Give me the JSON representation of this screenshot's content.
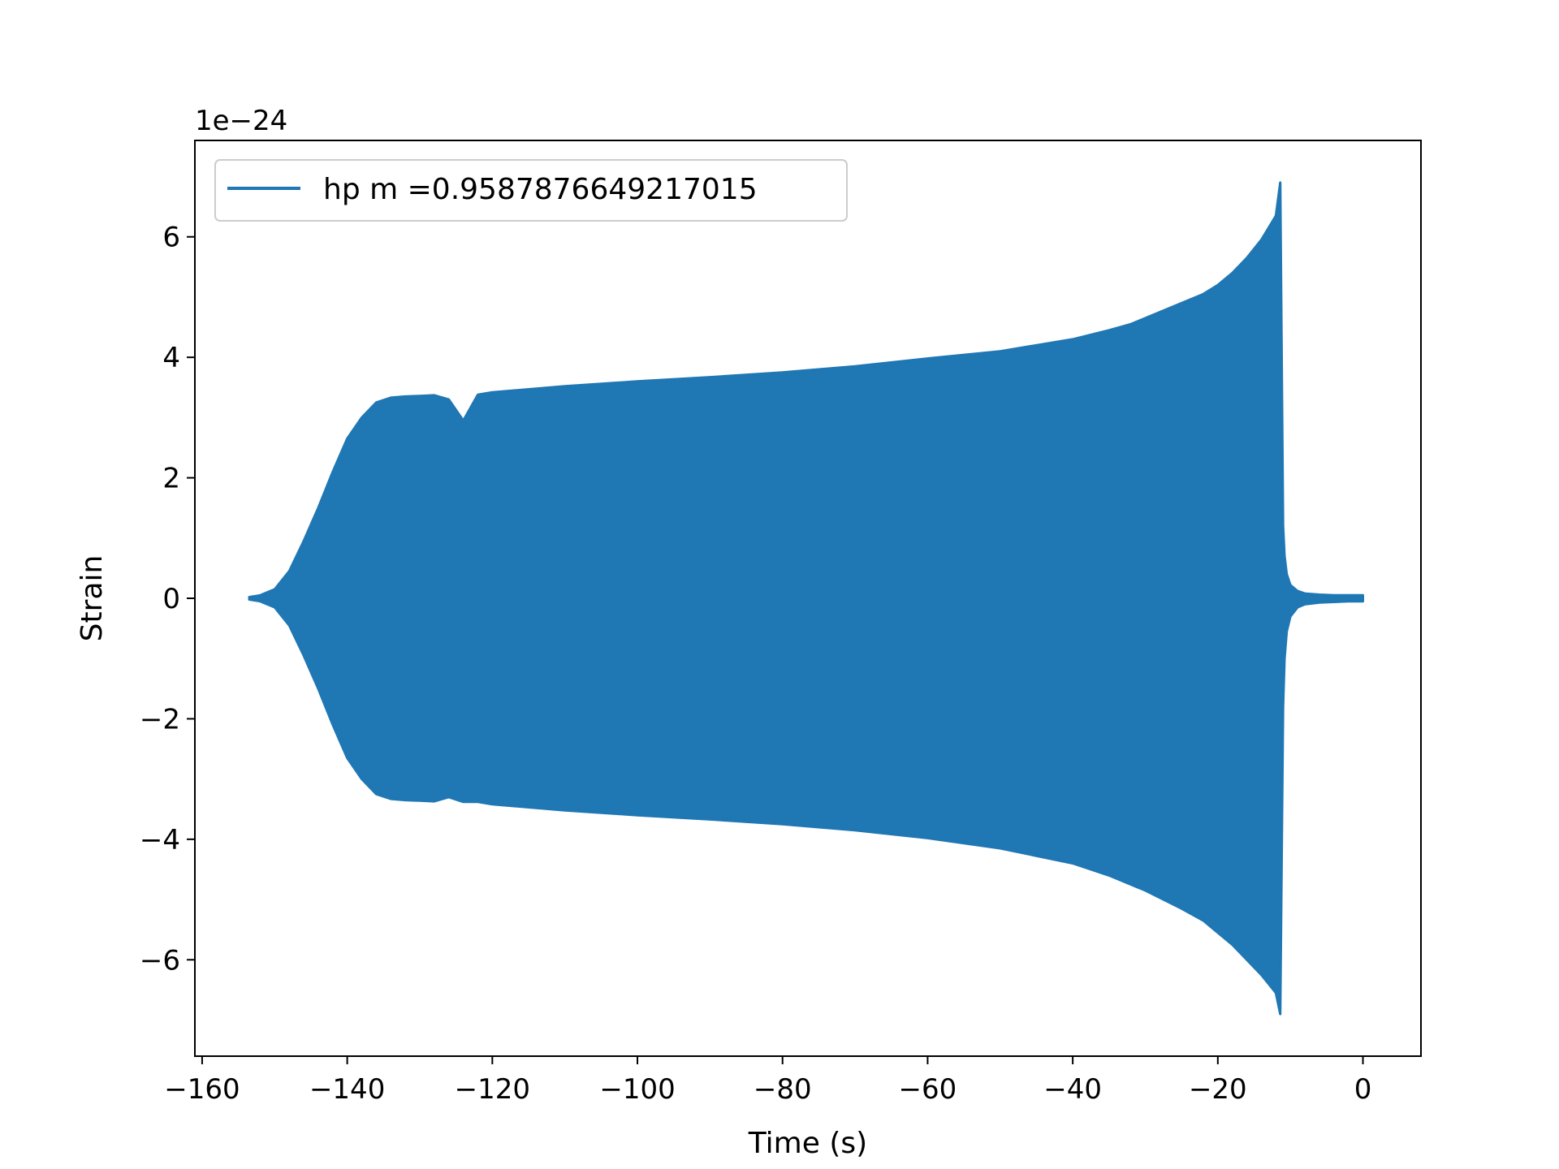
{
  "chart_data": {
    "type": "line",
    "xlabel": "Time (s)",
    "ylabel": "Strain",
    "offset_text": "1e−24",
    "xlim": [
      -161,
      8
    ],
    "ylim": [
      -7.6,
      7.6
    ],
    "x_ticks": [
      -160,
      -140,
      -120,
      -100,
      -80,
      -60,
      -40,
      -20,
      0
    ],
    "x_tick_labels": [
      "−160",
      "−140",
      "−120",
      "−100",
      "−80",
      "−60",
      "−40",
      "−20",
      "0"
    ],
    "y_ticks": [
      -6,
      -4,
      -2,
      0,
      2,
      4,
      6
    ],
    "y_tick_labels": [
      "−6",
      "−4",
      "−2",
      "0",
      "2",
      "4",
      "6"
    ],
    "grid": false,
    "legend_position": "upper-left",
    "series": [
      {
        "name": "hp m =0.9587876649217015",
        "color": "#1f77b4",
        "envelope": {
          "x": [
            -153.5,
            -152,
            -150,
            -148,
            -146,
            -144,
            -142,
            -140,
            -138,
            -136,
            -134,
            -132,
            -130,
            -128,
            -126,
            -124,
            -122,
            -120,
            -110,
            -100,
            -90,
            -80,
            -70,
            -60,
            -50,
            -40,
            -35,
            -32,
            -30,
            -25,
            -22,
            -20,
            -18,
            -16,
            -14,
            -13,
            -12,
            -11.4,
            -11.0,
            -10.8,
            -10.5,
            -10,
            -9,
            -8,
            -6,
            -4,
            -2,
            0
          ],
          "upper": [
            0.02,
            0.05,
            0.15,
            0.45,
            0.95,
            1.5,
            2.1,
            2.65,
            3.0,
            3.25,
            3.33,
            3.35,
            3.36,
            3.37,
            3.3,
            2.95,
            3.38,
            3.42,
            3.52,
            3.6,
            3.67,
            3.75,
            3.85,
            3.98,
            4.1,
            4.3,
            4.45,
            4.55,
            4.65,
            4.9,
            5.05,
            5.2,
            5.4,
            5.65,
            5.95,
            6.15,
            6.35,
            6.9,
            1.2,
            0.7,
            0.4,
            0.22,
            0.12,
            0.08,
            0.06,
            0.05,
            0.05,
            0.05
          ],
          "lower": [
            -0.02,
            -0.05,
            -0.15,
            -0.45,
            -0.95,
            -1.5,
            -2.1,
            -2.65,
            -3.0,
            -3.25,
            -3.33,
            -3.35,
            -3.36,
            -3.37,
            -3.3,
            -3.38,
            -3.38,
            -3.42,
            -3.52,
            -3.6,
            -3.67,
            -3.75,
            -3.85,
            -3.98,
            -4.15,
            -4.4,
            -4.6,
            -4.75,
            -4.85,
            -5.15,
            -5.35,
            -5.55,
            -5.75,
            -6.0,
            -6.25,
            -6.4,
            -6.55,
            -6.9,
            -1.8,
            -1.0,
            -0.55,
            -0.3,
            -0.15,
            -0.1,
            -0.07,
            -0.06,
            -0.05,
            -0.05
          ]
        }
      }
    ]
  }
}
